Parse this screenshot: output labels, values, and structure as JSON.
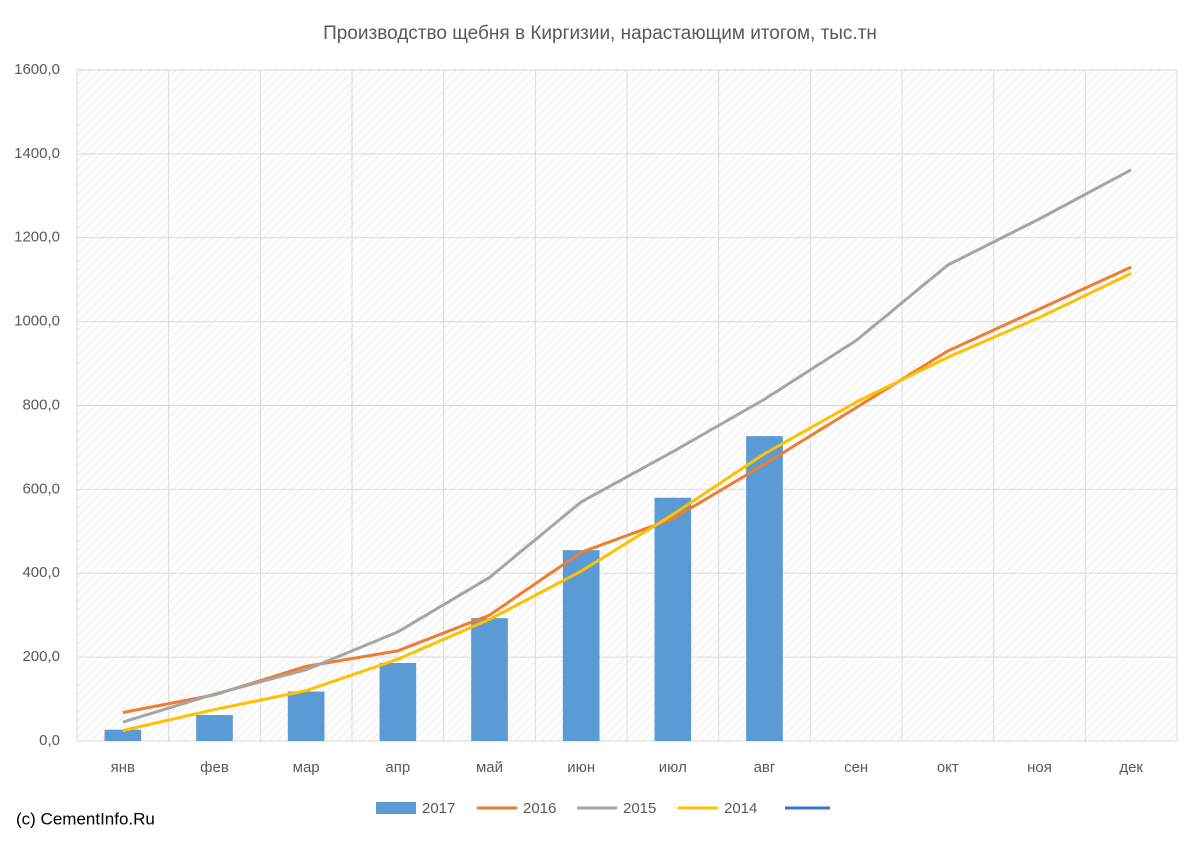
{
  "chart_data": {
    "type": "bar-line",
    "title": "Производство щебня в Киргизии, нарастающим итогом, тыс.тн",
    "categories": [
      "янв",
      "фев",
      "мар",
      "апр",
      "май",
      "июн",
      "июл",
      "авг",
      "сен",
      "окт",
      "ноя",
      "дек"
    ],
    "series": [
      {
        "name": "2017",
        "type": "bar",
        "color": "#5b9bd5",
        "values": [
          27,
          62,
          118,
          186,
          293,
          455,
          580,
          727,
          null,
          null,
          null,
          null
        ]
      },
      {
        "name": "2016",
        "type": "line",
        "color": "#ed7d31",
        "values": [
          68,
          110,
          178,
          215,
          300,
          450,
          530,
          660,
          795,
          930,
          1030,
          1130
        ]
      },
      {
        "name": "2015",
        "type": "line",
        "color": "#a5a5a5",
        "values": [
          45,
          112,
          170,
          260,
          390,
          570,
          690,
          815,
          955,
          1135,
          1245,
          1362
        ]
      },
      {
        "name": "2014",
        "type": "line",
        "color": "#ffc000",
        "values": [
          25,
          75,
          120,
          195,
          290,
          405,
          540,
          685,
          808,
          915,
          1010,
          1115
        ]
      }
    ],
    "ylim": [
      0,
      1600
    ],
    "yticks": [
      {
        "value": 0,
        "label": "0,0"
      },
      {
        "value": 200,
        "label": "200,0"
      },
      {
        "value": 400,
        "label": "400,0"
      },
      {
        "value": 600,
        "label": "600,0"
      },
      {
        "value": 800,
        "label": "800,0"
      },
      {
        "value": 1000,
        "label": "1000,0"
      },
      {
        "value": 1200,
        "label": "1200,0"
      },
      {
        "value": 1400,
        "label": "1400,0"
      },
      {
        "value": 1600,
        "label": "1600,0"
      }
    ],
    "grid": true,
    "legend": "bottom",
    "source": "(c) CementInfo.Ru"
  }
}
